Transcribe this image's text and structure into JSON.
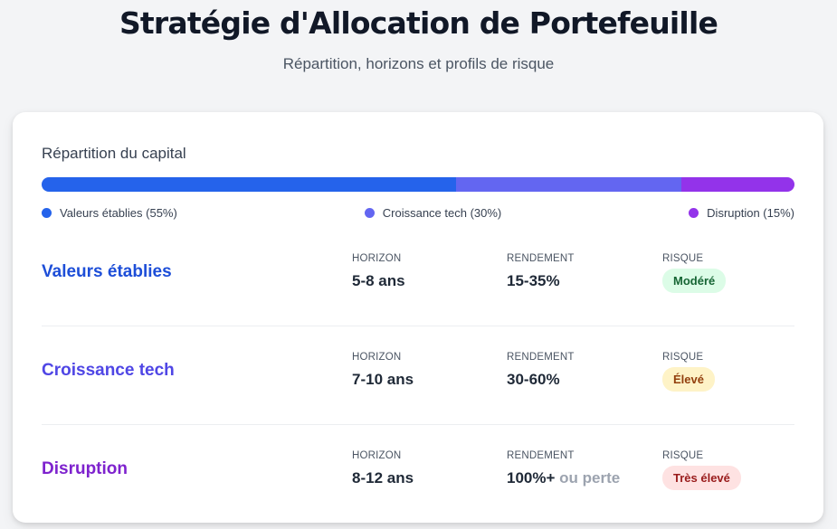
{
  "header": {
    "title": "Stratégie d'Allocation de Portefeuille",
    "subtitle": "Répartition, horizons et profils de risque"
  },
  "allocation": {
    "label": "Répartition du capital",
    "segments": [
      {
        "name": "Valeurs établies",
        "percent": 55,
        "color": "#2563eb",
        "legend": "Valeurs établies (55%)"
      },
      {
        "name": "Croissance tech",
        "percent": 30,
        "color": "#6366f1",
        "legend": "Croissance tech (30%)"
      },
      {
        "name": "Disruption",
        "percent": 15,
        "color": "#9333ea",
        "legend": "Disruption (15%)"
      }
    ]
  },
  "strategies": [
    {
      "name": "Valeurs établies",
      "name_color": "#1d4ed8",
      "horizon_label": "HORIZON",
      "horizon": "5-8 ans",
      "return_label": "RENDEMENT",
      "return": "15-35%",
      "return_extra": "",
      "risk_label": "RISQUE",
      "risk": "Modéré",
      "risk_bg": "#dcfce7",
      "risk_fg": "#166534"
    },
    {
      "name": "Croissance tech",
      "name_color": "#4f46e5",
      "horizon_label": "HORIZON",
      "horizon": "7-10 ans",
      "return_label": "RENDEMENT",
      "return": "30-60%",
      "return_extra": "",
      "risk_label": "RISQUE",
      "risk": "Élevé",
      "risk_bg": "#fef3c7",
      "risk_fg": "#92400e"
    },
    {
      "name": "Disruption",
      "name_color": "#7e22ce",
      "horizon_label": "HORIZON",
      "horizon": "8-12 ans",
      "return_label": "RENDEMENT",
      "return": "100%+",
      "return_extra": "ou perte",
      "risk_label": "RISQUE",
      "risk": "Très élevé",
      "risk_bg": "#fee2e2",
      "risk_fg": "#991b1b"
    }
  ]
}
